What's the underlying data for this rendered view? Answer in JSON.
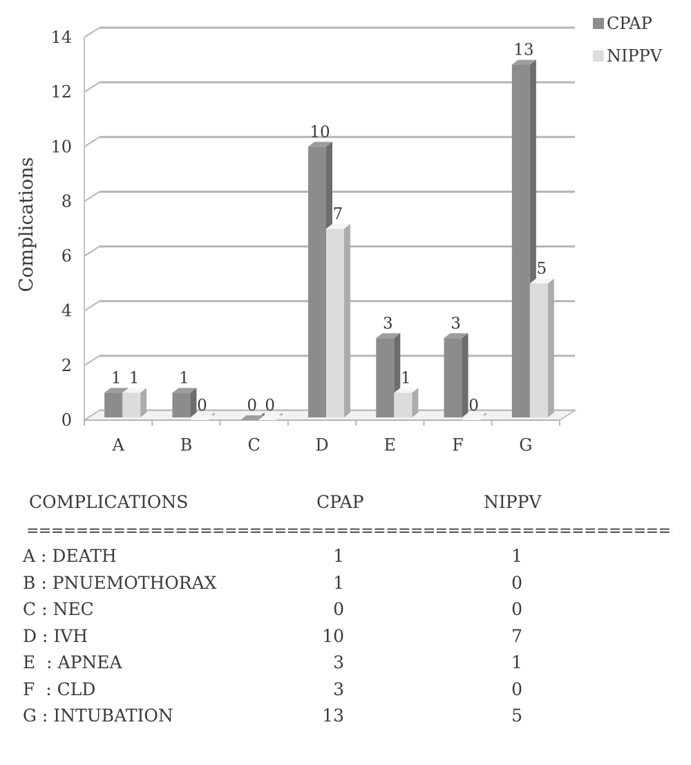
{
  "chart_data": {
    "type": "bar",
    "categories": [
      "A",
      "B",
      "C",
      "D",
      "E",
      "F",
      "G"
    ],
    "series": [
      {
        "name": "CPAP",
        "values": [
          1,
          1,
          0,
          10,
          3,
          3,
          13
        ],
        "color": "#8c8c8c"
      },
      {
        "name": "NIPPV",
        "values": [
          1,
          0,
          0,
          7,
          1,
          0,
          5
        ],
        "color": "#dcdcdc"
      }
    ],
    "ylabel": "Complications",
    "ylim": [
      0,
      14
    ],
    "yticks": [
      0,
      2,
      4,
      6,
      8,
      10,
      12,
      14
    ],
    "grid": true,
    "legend": "top-right",
    "data_labels": true
  },
  "table": {
    "headers": [
      "COMPLICATIONS",
      "CPAP",
      "NIPPV"
    ],
    "separator": "================================================================================",
    "rows": [
      {
        "label": "A : DEATH",
        "cpap": "1",
        "nippv": "1"
      },
      {
        "label": "B : PNUEMOTHORAX",
        "cpap": "1",
        "nippv": "0"
      },
      {
        "label": "C : NEC",
        "cpap": "0",
        "nippv": "0"
      },
      {
        "label": "D : IVH",
        "cpap": "10",
        "nippv": "7"
      },
      {
        "label": "E  : APNEA",
        "cpap": "3",
        "nippv": "1"
      },
      {
        "label": "F  : CLD",
        "cpap": "3",
        "nippv": "0"
      },
      {
        "label": "G : INTUBATION",
        "cpap": "13",
        "nippv": "5"
      }
    ]
  }
}
